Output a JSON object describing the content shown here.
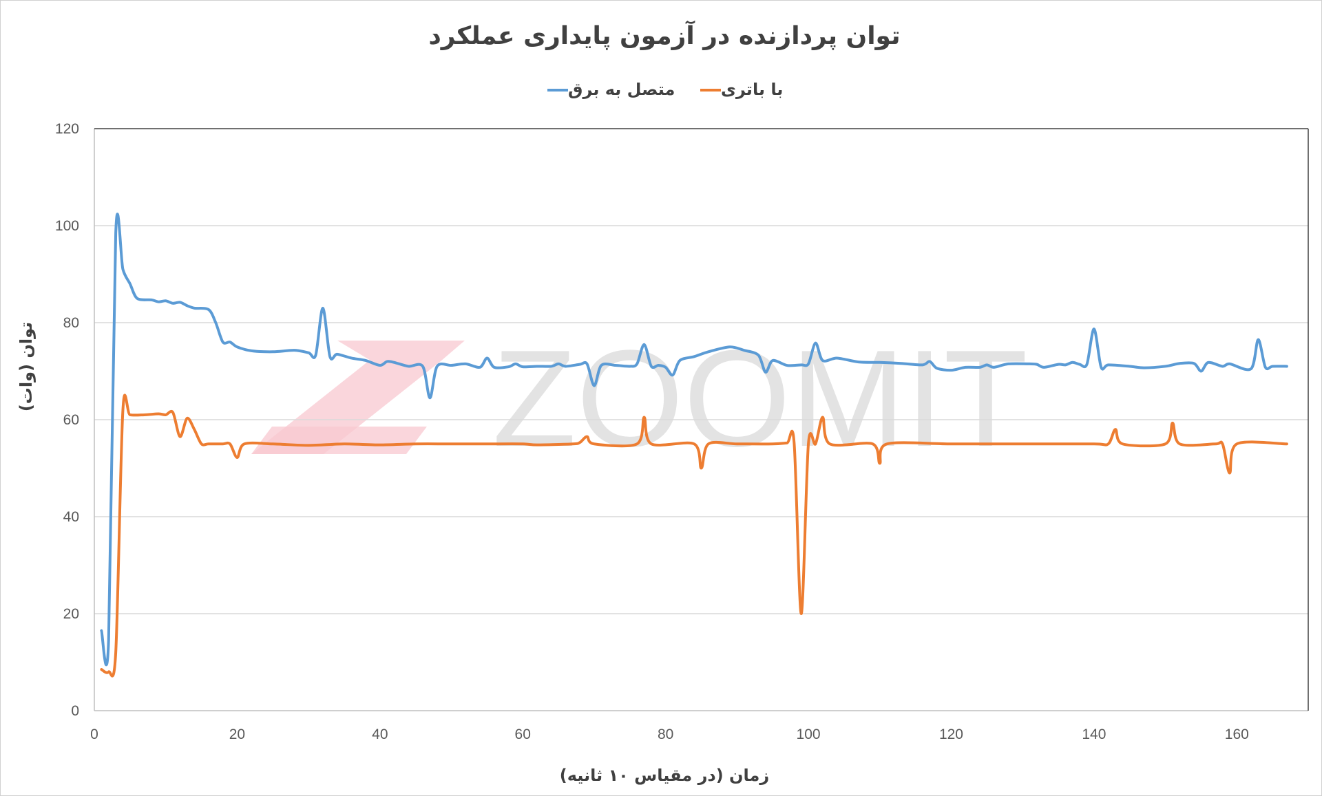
{
  "chart_data": {
    "type": "line",
    "title": "توان پردازنده در آزمون پایداری عملکرد",
    "xlabel": "زمان (در مقیاس ۱۰ ثانیه)",
    "ylabel": "توان (وات)",
    "xlim": [
      0,
      170
    ],
    "ylim": [
      0,
      120
    ],
    "xticks": [
      0,
      20,
      40,
      60,
      80,
      100,
      120,
      140,
      160
    ],
    "yticks": [
      0,
      20,
      40,
      60,
      80,
      100,
      120
    ],
    "grid": true,
    "legend_position": "top-center",
    "watermark": "ZOOMIT",
    "series": [
      {
        "name": "متصل به برق",
        "color": "#5b9bd5",
        "points": [
          [
            1,
            16.5
          ],
          [
            2,
            14.5
          ],
          [
            3,
            98.5
          ],
          [
            4,
            91
          ],
          [
            5,
            88
          ],
          [
            6,
            85
          ],
          [
            8,
            84.7
          ],
          [
            9,
            84.3
          ],
          [
            10,
            84.5
          ],
          [
            11,
            84
          ],
          [
            12,
            84.2
          ],
          [
            13,
            83.5
          ],
          [
            14,
            83
          ],
          [
            16,
            82.7
          ],
          [
            17,
            80
          ],
          [
            18,
            76
          ],
          [
            19,
            76
          ],
          [
            20,
            75
          ],
          [
            22,
            74.2
          ],
          [
            25,
            74
          ],
          [
            28,
            74.3
          ],
          [
            30,
            73.8
          ],
          [
            31,
            73.3
          ],
          [
            32,
            83
          ],
          [
            33,
            73
          ],
          [
            34,
            73.5
          ],
          [
            36,
            72.7
          ],
          [
            38,
            72.2
          ],
          [
            40,
            71.2
          ],
          [
            41,
            72
          ],
          [
            42,
            71.8
          ],
          [
            44,
            71
          ],
          [
            46,
            71
          ],
          [
            47,
            64.5
          ],
          [
            48,
            71
          ],
          [
            50,
            71.2
          ],
          [
            52,
            71.5
          ],
          [
            54,
            70.8
          ],
          [
            55,
            72.7
          ],
          [
            56,
            70.8
          ],
          [
            58,
            70.9
          ],
          [
            59,
            71.5
          ],
          [
            60,
            70.9
          ],
          [
            62,
            71
          ],
          [
            64,
            71
          ],
          [
            65,
            71.5
          ],
          [
            66,
            71
          ],
          [
            68,
            71.4
          ],
          [
            69,
            71.5
          ],
          [
            70,
            67
          ],
          [
            71,
            71.2
          ],
          [
            73,
            71.2
          ],
          [
            75,
            71
          ],
          [
            76,
            71.5
          ],
          [
            77,
            75.5
          ],
          [
            78,
            71
          ],
          [
            79,
            71.2
          ],
          [
            80,
            70.8
          ],
          [
            81,
            69.2
          ],
          [
            82,
            72.2
          ],
          [
            84,
            73
          ],
          [
            86,
            74
          ],
          [
            89,
            75
          ],
          [
            91,
            74.3
          ],
          [
            93,
            73.3
          ],
          [
            94,
            69.8
          ],
          [
            95,
            72.2
          ],
          [
            97,
            71.2
          ],
          [
            99,
            71.3
          ],
          [
            100,
            71.5
          ],
          [
            101,
            75.8
          ],
          [
            102,
            72.2
          ],
          [
            104,
            72.7
          ],
          [
            107,
            71.9
          ],
          [
            110,
            71.8
          ],
          [
            113,
            71.6
          ],
          [
            116,
            71.3
          ],
          [
            117,
            72
          ],
          [
            118,
            70.6
          ],
          [
            120,
            70.2
          ],
          [
            122,
            70.8
          ],
          [
            124,
            70.8
          ],
          [
            125,
            71.3
          ],
          [
            126,
            70.8
          ],
          [
            128,
            71.5
          ],
          [
            131,
            71.5
          ],
          [
            132,
            71.4
          ],
          [
            133,
            70.8
          ],
          [
            135,
            71.4
          ],
          [
            136,
            71.3
          ],
          [
            137,
            71.8
          ],
          [
            138,
            71.4
          ],
          [
            139,
            71.4
          ],
          [
            140,
            78.7
          ],
          [
            141,
            70.8
          ],
          [
            142,
            71.3
          ],
          [
            145,
            71
          ],
          [
            147,
            70.7
          ],
          [
            150,
            71
          ],
          [
            152,
            71.6
          ],
          [
            154,
            71.6
          ],
          [
            155,
            70
          ],
          [
            156,
            71.8
          ],
          [
            158,
            71
          ],
          [
            159,
            71.5
          ],
          [
            162,
            70.5
          ],
          [
            163,
            76.5
          ],
          [
            164,
            70.8
          ],
          [
            165,
            71
          ],
          [
            167,
            71
          ]
        ]
      },
      {
        "name": "با باتری",
        "color": "#ed7d31",
        "points": [
          [
            1,
            8.5
          ],
          [
            2,
            8
          ],
          [
            3,
            12
          ],
          [
            4,
            62
          ],
          [
            5,
            61
          ],
          [
            7,
            61
          ],
          [
            9,
            61.2
          ],
          [
            10,
            61
          ],
          [
            11,
            61.5
          ],
          [
            12,
            56.5
          ],
          [
            13,
            60.3
          ],
          [
            14,
            58
          ],
          [
            15,
            55
          ],
          [
            16,
            55
          ],
          [
            18,
            55
          ],
          [
            19,
            55
          ],
          [
            20,
            52.2
          ],
          [
            21,
            55
          ],
          [
            25,
            55
          ],
          [
            30,
            54.7
          ],
          [
            35,
            55
          ],
          [
            40,
            54.8
          ],
          [
            45,
            55
          ],
          [
            50,
            55
          ],
          [
            55,
            55
          ],
          [
            60,
            55
          ],
          [
            62,
            54.8
          ],
          [
            67,
            55
          ],
          [
            68,
            55.3
          ],
          [
            69,
            56.5
          ],
          [
            70,
            55
          ],
          [
            76,
            55
          ],
          [
            77,
            60.5
          ],
          [
            78,
            55
          ],
          [
            84,
            55
          ],
          [
            85,
            50
          ],
          [
            86,
            55
          ],
          [
            90,
            55
          ],
          [
            95,
            55
          ],
          [
            97,
            55.2
          ],
          [
            98,
            55.3
          ],
          [
            99,
            20
          ],
          [
            100,
            55
          ],
          [
            101,
            55
          ],
          [
            102,
            60.5
          ],
          [
            103,
            55
          ],
          [
            109,
            55
          ],
          [
            110,
            51
          ],
          [
            111,
            55
          ],
          [
            120,
            55
          ],
          [
            130,
            55
          ],
          [
            140,
            55
          ],
          [
            142,
            55
          ],
          [
            143,
            58
          ],
          [
            144,
            55
          ],
          [
            150,
            55
          ],
          [
            151,
            59.3
          ],
          [
            152,
            55
          ],
          [
            157,
            55
          ],
          [
            158,
            55
          ],
          [
            159,
            49
          ],
          [
            160,
            55
          ],
          [
            167,
            55
          ]
        ]
      }
    ]
  }
}
